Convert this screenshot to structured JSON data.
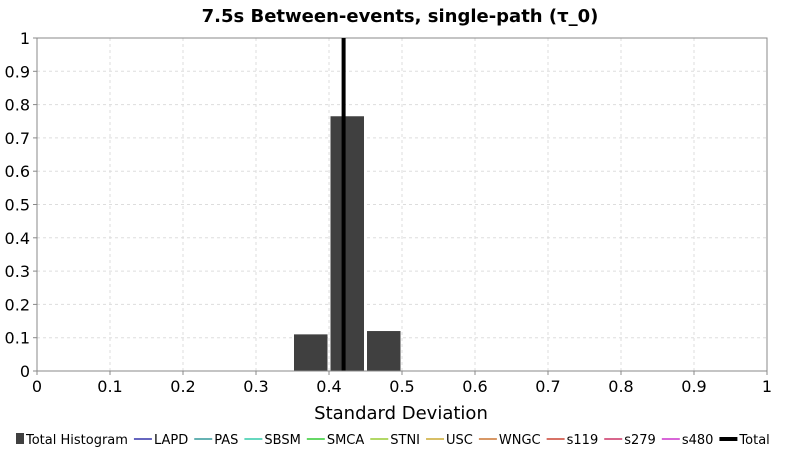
{
  "chart_data": {
    "type": "bar",
    "title": "7.5s Between-events, single-path (τ_0)",
    "xlabel": "Standard Deviation",
    "ylabel": "",
    "xlim": [
      0,
      1
    ],
    "ylim": [
      0,
      1
    ],
    "grid": true,
    "x_ticks": [
      "0",
      "0.1",
      "0.2",
      "0.3",
      "0.4",
      "0.5",
      "0.6",
      "0.7",
      "0.8",
      "0.9",
      "1"
    ],
    "y_ticks": [
      "0",
      "0.1",
      "0.2",
      "0.3",
      "0.4",
      "0.5",
      "0.6",
      "0.7",
      "0.8",
      "0.9",
      "1"
    ],
    "histogram": {
      "name": "Total Histogram",
      "color": "#404040",
      "bins": [
        {
          "x0": 0.35,
          "x1": 0.4,
          "value": 0.11
        },
        {
          "x0": 0.4,
          "x1": 0.45,
          "value": 0.765
        },
        {
          "x0": 0.45,
          "x1": 0.5,
          "value": 0.12
        }
      ]
    },
    "vertical_lines": [
      {
        "name": "Total",
        "x": 0.42,
        "color": "#000000"
      }
    ],
    "legend_position": "bottom",
    "legend": [
      {
        "name": "Total Histogram",
        "color": "#404040",
        "marker": "square"
      },
      {
        "name": "LAPD",
        "color": "#3333aa",
        "marker": "line"
      },
      {
        "name": "PAS",
        "color": "#33999a",
        "marker": "line"
      },
      {
        "name": "SBSM",
        "color": "#33ccaa",
        "marker": "line"
      },
      {
        "name": "SMCA",
        "color": "#33cc33",
        "marker": "line"
      },
      {
        "name": "STNI",
        "color": "#99cc33",
        "marker": "line"
      },
      {
        "name": "USC",
        "color": "#ccaa33",
        "marker": "line"
      },
      {
        "name": "WNGC",
        "color": "#cc7733",
        "marker": "line"
      },
      {
        "name": "s119",
        "color": "#cc4433",
        "marker": "line"
      },
      {
        "name": "s279",
        "color": "#cc3366",
        "marker": "line"
      },
      {
        "name": "s480",
        "color": "#cc33cc",
        "marker": "line"
      },
      {
        "name": "Total",
        "color": "#000000",
        "marker": "thick-line"
      }
    ]
  }
}
